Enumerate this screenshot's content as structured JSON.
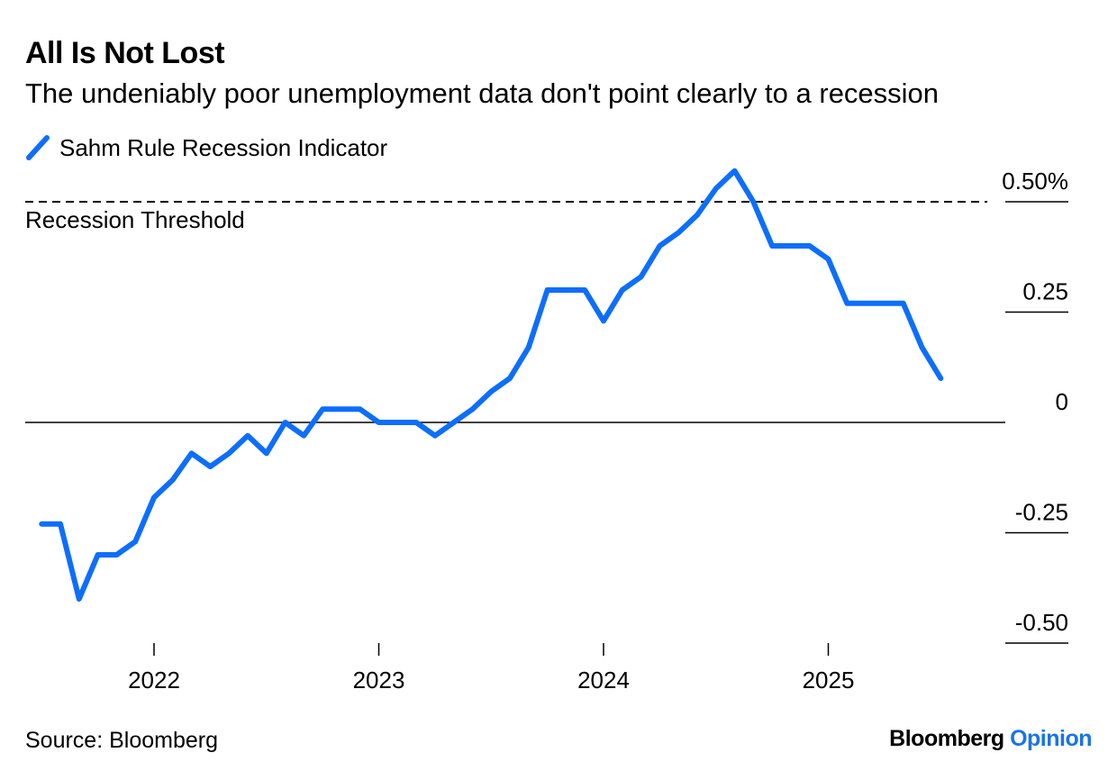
{
  "header": {
    "title": "All Is Not Lost",
    "subtitle": "The undeniably poor unemployment data don't point clearly to a recession"
  },
  "colors": {
    "series": "#0d6efd",
    "axis": "#000000"
  },
  "chart_data": {
    "type": "line",
    "title": "All Is Not Lost",
    "subtitle": "The undeniably poor unemployment data don't point clearly to a recession",
    "xlabel": "",
    "ylabel": "",
    "x_ticks": [
      "2022",
      "2023",
      "2024",
      "2025"
    ],
    "y_ticks": [
      "-0.50",
      "-0.25",
      "0",
      "0.25",
      "0.50%"
    ],
    "y_tick_values": [
      -0.5,
      -0.25,
      0,
      0.25,
      0.5
    ],
    "ylim": [
      -0.5,
      0.55
    ],
    "grid": false,
    "legend_position": "top-left",
    "threshold": {
      "label": "Recession Threshold",
      "value": 0.5
    },
    "series": [
      {
        "name": "Sahm Rule Recession Indicator",
        "x": [
          "2021-07",
          "2021-08",
          "2021-09",
          "2021-10",
          "2021-11",
          "2021-12",
          "2022-01",
          "2022-02",
          "2022-03",
          "2022-04",
          "2022-05",
          "2022-06",
          "2022-07",
          "2022-08",
          "2022-09",
          "2022-10",
          "2022-11",
          "2022-12",
          "2023-01",
          "2023-02",
          "2023-03",
          "2023-04",
          "2023-05",
          "2023-06",
          "2023-07",
          "2023-08",
          "2023-09",
          "2023-10",
          "2023-11",
          "2023-12",
          "2024-01",
          "2024-02",
          "2024-03",
          "2024-04",
          "2024-05",
          "2024-06",
          "2024-07",
          "2024-08",
          "2024-09",
          "2024-10",
          "2024-11",
          "2024-12",
          "2025-01",
          "2025-02",
          "2025-03",
          "2025-04",
          "2025-05",
          "2025-06",
          "2025-07",
          "2025-08"
        ],
        "values": [
          -0.23,
          -0.23,
          -0.4,
          -0.3,
          -0.3,
          -0.27,
          -0.17,
          -0.13,
          -0.07,
          -0.1,
          -0.07,
          -0.03,
          -0.07,
          0.0,
          -0.03,
          0.03,
          0.03,
          0.03,
          0.0,
          0.0,
          0.0,
          -0.03,
          0.0,
          0.03,
          0.07,
          0.1,
          0.17,
          0.3,
          0.3,
          0.3,
          0.23,
          0.3,
          0.33,
          0.4,
          0.43,
          0.47,
          0.53,
          0.57,
          0.5,
          0.4,
          0.4,
          0.4,
          0.37,
          0.27,
          0.27,
          0.27,
          0.27,
          0.17,
          0.1,
          null
        ]
      }
    ]
  },
  "footer": {
    "source": "Source: Bloomberg",
    "brand_main": "Bloomberg",
    "brand_accent": "Opinion"
  }
}
